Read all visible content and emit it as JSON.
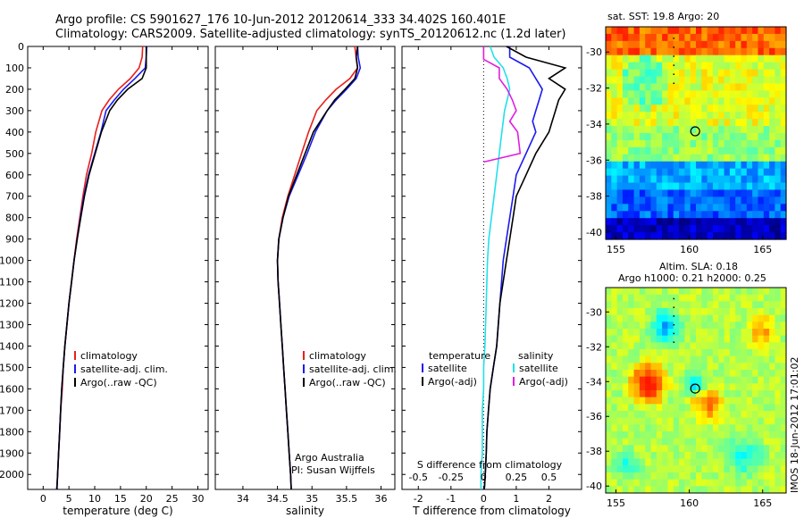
{
  "header": {
    "line1": "Argo profile: CS 5901627_176 10-Jun-2012 20120614_333 34.402S 160.401E",
    "line2": "Climatology: CARS2009. Satellite-adjusted climatology: synTS_20120612.nc (1.2d later)"
  },
  "colors": {
    "climatology": "#e8201c",
    "satellite": "#1a1af0",
    "argo": "#000000",
    "sal_satellite": "#22e0e8",
    "sal_argo": "#e01ee0"
  },
  "side_labels": {
    "sst_title": "sat. SST: 19.8 Argo: 20",
    "sla_title1": "Altim. SLA: 0.18",
    "sla_title2": "Argo h1000: 0.21 h2000: 0.25",
    "imos_stamp": "IMOS 18-Jun-2012 17:01:02",
    "credit1": "Argo Australia",
    "credit2": "PI: Susan Wijffels"
  },
  "chart_data": [
    {
      "type": "line",
      "title": "",
      "xlabel": "temperature (deg C)",
      "ylabel": "",
      "xlim": [
        -3,
        32
      ],
      "ylim": [
        2070,
        0
      ],
      "x_ticks": [
        0,
        5,
        10,
        15,
        20,
        25,
        30
      ],
      "y_ticks": [
        0,
        100,
        200,
        300,
        400,
        500,
        600,
        700,
        800,
        900,
        1000,
        1100,
        1200,
        1300,
        1400,
        1500,
        1600,
        1700,
        1800,
        1900,
        2000
      ],
      "legend": {
        "placement": "lower-middle",
        "entries": [
          "climatology",
          "satellite-adj. clim.",
          "Argo(..raw -QC)"
        ]
      },
      "series": [
        {
          "name": "climatology",
          "color": "#e8201c",
          "x": [
            19.3,
            19.2,
            18.6,
            16.9,
            14.6,
            12.8,
            11.4,
            10.2,
            9.4,
            8.4,
            7.7,
            7.1,
            6.5,
            6.0,
            5.5,
            5.0,
            4.6,
            4.2,
            3.9,
            3.7,
            3.4,
            3.2,
            3.0,
            2.8,
            2.7,
            2.6
          ],
          "y": [
            0,
            50,
            100,
            150,
            200,
            250,
            300,
            400,
            500,
            600,
            700,
            800,
            900,
            1000,
            1100,
            1200,
            1300,
            1400,
            1500,
            1600,
            1700,
            1800,
            1900,
            2000,
            2050,
            2070
          ]
        },
        {
          "name": "satellite-adj. clim.",
          "color": "#1a1af0",
          "x": [
            20.1,
            20.0,
            19.8,
            17.8,
            15.6,
            13.8,
            12.2,
            11.2,
            10.0,
            8.8,
            7.9,
            7.2,
            6.6,
            6.0,
            5.5,
            5.0,
            4.6,
            4.2,
            3.9,
            3.6,
            3.4,
            3.2,
            3.0,
            2.8,
            2.7,
            2.6
          ],
          "y": [
            0,
            50,
            100,
            150,
            200,
            250,
            300,
            400,
            500,
            600,
            700,
            800,
            900,
            1000,
            1100,
            1200,
            1300,
            1400,
            1500,
            1600,
            1700,
            1800,
            1900,
            2000,
            2050,
            2070
          ]
        },
        {
          "name": "Argo(..raw -QC)",
          "color": "#000000",
          "x": [
            20.0,
            20.0,
            20.0,
            19.2,
            16.4,
            14.4,
            12.9,
            11.3,
            10.1,
            8.9,
            8.0,
            7.3,
            6.6,
            6.0,
            5.5,
            5.0,
            4.6,
            4.2,
            3.9,
            3.6,
            3.4,
            3.2,
            3.0,
            2.8,
            2.7,
            2.7
          ],
          "y": [
            0,
            50,
            100,
            150,
            200,
            250,
            300,
            400,
            500,
            600,
            700,
            800,
            900,
            1000,
            1100,
            1200,
            1300,
            1400,
            1500,
            1600,
            1700,
            1800,
            1900,
            2000,
            2050,
            2070
          ]
        }
      ]
    },
    {
      "type": "line",
      "title": "",
      "xlabel": "salinity",
      "ylabel": "",
      "xlim": [
        33.6,
        36.2
      ],
      "ylim": [
        2070,
        0
      ],
      "x_ticks": [
        34,
        34.5,
        35,
        35.5,
        36
      ],
      "x_tick_labels": [
        "34",
        "34.5",
        "35",
        "35.5",
        "36"
      ],
      "legend": {
        "placement": "lower-middle",
        "entries": [
          "climatology",
          "satellite-adj. clim.",
          "Argo(..raw -QC)"
        ]
      },
      "series": [
        {
          "name": "climatology",
          "color": "#e8201c",
          "x": [
            35.62,
            35.64,
            35.66,
            35.55,
            35.35,
            35.2,
            35.07,
            34.95,
            34.85,
            34.75,
            34.65,
            34.57,
            34.52,
            34.5,
            34.51,
            34.53,
            34.55,
            34.57,
            34.59,
            34.61,
            34.63,
            34.65,
            34.67,
            34.69,
            34.7
          ],
          "y": [
            0,
            50,
            100,
            150,
            200,
            250,
            300,
            400,
            500,
            600,
            700,
            800,
            900,
            1000,
            1100,
            1200,
            1300,
            1400,
            1500,
            1600,
            1700,
            1800,
            1900,
            2000,
            2070
          ]
        },
        {
          "name": "satellite-adj. clim.",
          "color": "#1a1af0",
          "x": [
            35.66,
            35.67,
            35.7,
            35.64,
            35.5,
            35.35,
            35.22,
            35.05,
            34.93,
            34.8,
            34.67,
            34.58,
            34.52,
            34.5,
            34.51,
            34.53,
            34.55,
            34.57,
            34.59,
            34.61,
            34.63,
            34.65,
            34.67,
            34.69,
            34.7
          ],
          "y": [
            0,
            50,
            100,
            150,
            200,
            250,
            300,
            400,
            500,
            600,
            700,
            800,
            900,
            1000,
            1100,
            1200,
            1300,
            1400,
            1500,
            1600,
            1700,
            1800,
            1900,
            2000,
            2070
          ]
        },
        {
          "name": "Argo(..raw -QC)",
          "color": "#000000",
          "x": [
            35.66,
            35.64,
            35.66,
            35.62,
            35.48,
            35.33,
            35.22,
            35.02,
            34.9,
            34.78,
            34.66,
            34.58,
            34.52,
            34.5,
            34.51,
            34.53,
            34.55,
            34.57,
            34.59,
            34.61,
            34.63,
            34.65,
            34.67,
            34.69,
            34.7
          ],
          "y": [
            0,
            50,
            100,
            150,
            200,
            250,
            300,
            400,
            500,
            600,
            700,
            800,
            900,
            1000,
            1100,
            1200,
            1300,
            1400,
            1500,
            1600,
            1700,
            1800,
            1900,
            2000,
            2070
          ]
        }
      ]
    },
    {
      "type": "line",
      "title": "",
      "xlabel": "T difference from climatology",
      "xlabel_top": "S difference from climatology",
      "ylabel": "",
      "xlim": [
        -2.5,
        3.0
      ],
      "ylim": [
        2070,
        0
      ],
      "x_ticks": [
        -2,
        -1,
        0,
        1,
        2
      ],
      "s_ticks": [
        -0.5,
        -0.25,
        0,
        0.25,
        0.5
      ],
      "s_tick_labels": [
        "-0.5",
        "-0.25",
        "0",
        "0.25",
        "0.5"
      ],
      "zero_line": "dotted",
      "legend": {
        "placement": "lower-middle",
        "entries": [
          "temperature",
          "satellite",
          "Argo(-adj)",
          "salinity",
          "satellite",
          "Argo(-adj)"
        ]
      },
      "series": [
        {
          "name": "satellite",
          "color": "#1a1af0",
          "x": [
            0.8,
            0.8,
            1.4,
            1.6,
            1.8,
            1.7,
            1.6,
            1.5,
            1.6,
            1.3,
            1.0,
            0.9,
            0.8,
            0.7,
            0.6,
            0.5,
            0.4,
            0.3,
            0.2,
            0.15,
            0.1,
            0.08,
            0.05,
            0.03,
            0.02
          ],
          "y": [
            0,
            50,
            100,
            150,
            200,
            250,
            300,
            350,
            400,
            500,
            600,
            700,
            800,
            900,
            1000,
            1200,
            1400,
            1500,
            1600,
            1700,
            1800,
            1900,
            2000,
            2050,
            2070
          ]
        },
        {
          "name": "Argo(-adj)",
          "color": "#000000",
          "x": [
            0.7,
            1.3,
            2.5,
            2.0,
            2.5,
            2.3,
            2.2,
            2.1,
            2.0,
            1.6,
            1.3,
            1.0,
            0.9,
            0.8,
            0.7,
            0.5,
            0.4,
            0.3,
            0.2,
            0.15,
            0.1,
            0.08,
            0.05,
            0.03,
            0.02
          ],
          "y": [
            0,
            50,
            100,
            150,
            200,
            250,
            300,
            350,
            400,
            500,
            600,
            700,
            800,
            900,
            1000,
            1200,
            1400,
            1500,
            1600,
            1700,
            1800,
            1900,
            2000,
            2050,
            2070
          ]
        },
        {
          "name": "satellite",
          "axis": "salinity",
          "color": "#22e0e8",
          "x": [
            0.05,
            0.08,
            0.15,
            0.18,
            0.2,
            0.18,
            0.16,
            0.15,
            0.14,
            0.12,
            0.1,
            0.08,
            0.06,
            0.04,
            0.03,
            0.02,
            0.01,
            0.0,
            0.0,
            -0.01,
            -0.01,
            -0.01,
            -0.02,
            -0.02
          ],
          "y": [
            0,
            50,
            100,
            150,
            200,
            250,
            300,
            350,
            400,
            500,
            600,
            700,
            800,
            900,
            1000,
            1200,
            1400,
            1500,
            1600,
            1700,
            1800,
            1900,
            2000,
            2070
          ]
        },
        {
          "name": "Argo(-adj)",
          "axis": "salinity",
          "color": "#e01ee0",
          "x": [
            0.0,
            0.0,
            0.12,
            0.12,
            0.18,
            0.22,
            0.25,
            0.2,
            0.26,
            0.28,
            0.0
          ],
          "y": [
            0,
            60,
            100,
            150,
            200,
            250,
            300,
            350,
            400,
            500,
            540
          ]
        }
      ]
    },
    {
      "type": "heatmap",
      "title": "sat. SST: 19.8 Argo: 20",
      "xlim": [
        154.3,
        166.6
      ],
      "ylim": [
        -40.4,
        -28.6
      ],
      "x_ticks": [
        155,
        160,
        165
      ],
      "y_ticks": [
        -30,
        -32,
        -34,
        -36,
        -38,
        -40
      ],
      "marker": {
        "lon": 160.401,
        "lat": -34.402
      }
    },
    {
      "type": "heatmap",
      "title": "Altim. SLA: 0.18",
      "subtitle": "Argo h1000: 0.21 h2000: 0.25",
      "xlim": [
        154.3,
        166.6
      ],
      "ylim": [
        -40.4,
        -28.6
      ],
      "x_ticks": [
        155,
        160,
        165
      ],
      "y_ticks": [
        -30,
        -32,
        -34,
        -36,
        -38,
        -40
      ],
      "marker": {
        "lon": 160.401,
        "lat": -34.402
      }
    }
  ]
}
